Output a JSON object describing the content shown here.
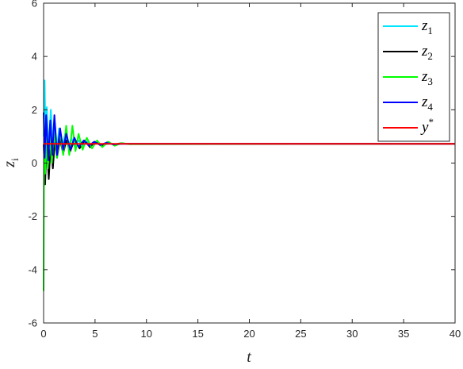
{
  "chart_data": {
    "type": "line",
    "title": "",
    "xlabel": "t",
    "ylabel_base": "z",
    "ylabel_sub": "i",
    "xlim": [
      0,
      40
    ],
    "ylim": [
      -6,
      6
    ],
    "x_ticks": [
      0,
      5,
      10,
      15,
      20,
      25,
      30,
      35,
      40
    ],
    "y_ticks": [
      -6,
      -4,
      -2,
      0,
      2,
      4,
      6
    ],
    "x_tick_labels": [
      "0",
      "5",
      "10",
      "15",
      "20",
      "25",
      "30",
      "35",
      "40"
    ],
    "y_tick_labels": [
      "-6",
      "-4",
      "-2",
      "0",
      "2",
      "4",
      "6"
    ],
    "grid": false,
    "legend_position": "top-right",
    "series": [
      {
        "name": "z1",
        "label_base": "z",
        "label_sub": "1",
        "color": "#00e5ff",
        "x": [
          0,
          0.1,
          0.2,
          0.3,
          0.5,
          0.7,
          0.9,
          1.1,
          1.3,
          1.5,
          1.8,
          2.1,
          2.4,
          2.7,
          3.0,
          3.4,
          3.8,
          4.2,
          4.7,
          5.2,
          5.8,
          6.5,
          7.2,
          8.0,
          40
        ],
        "y": [
          1.0,
          3.1,
          0.4,
          2.1,
          0.5,
          2.0,
          0.6,
          1.5,
          0.5,
          1.3,
          0.6,
          1.1,
          0.6,
          0.95,
          0.65,
          0.85,
          0.65,
          0.8,
          0.68,
          0.76,
          0.69,
          0.73,
          0.71,
          0.72,
          0.72
        ]
      },
      {
        "name": "z2",
        "label_base": "z",
        "label_sub": "2",
        "color": "#000000",
        "x": [
          0,
          0.15,
          0.3,
          0.5,
          0.7,
          0.9,
          1.1,
          1.3,
          1.6,
          1.9,
          2.2,
          2.6,
          3.0,
          3.5,
          4.0,
          4.5,
          5.0,
          5.6,
          6.2,
          6.8,
          7.5,
          8.2,
          40
        ],
        "y": [
          0.7,
          -0.8,
          0.9,
          -0.6,
          0.8,
          -0.2,
          0.9,
          0.2,
          0.9,
          0.35,
          0.85,
          0.45,
          0.88,
          0.55,
          0.85,
          0.6,
          0.8,
          0.65,
          0.78,
          0.7,
          0.74,
          0.72,
          0.72
        ]
      },
      {
        "name": "z3",
        "label_base": "z",
        "label_sub": "3",
        "color": "#00ff00",
        "x": [
          0,
          0.05,
          0.15,
          0.25,
          0.4,
          0.6,
          0.8,
          1.0,
          1.3,
          1.6,
          1.9,
          2.2,
          2.5,
          2.8,
          3.1,
          3.4,
          3.8,
          4.2,
          4.7,
          5.2,
          5.7,
          6.3,
          6.9,
          7.6,
          8.3,
          40
        ],
        "y": [
          -4.8,
          0.8,
          -0.4,
          0.9,
          -0.2,
          1.0,
          0.0,
          1.1,
          0.2,
          1.2,
          0.3,
          1.4,
          0.3,
          1.4,
          0.45,
          1.1,
          0.5,
          0.95,
          0.55,
          0.85,
          0.6,
          0.8,
          0.65,
          0.75,
          0.71,
          0.72
        ]
      },
      {
        "name": "z4",
        "label_base": "z",
        "label_sub": "4",
        "color": "#0000ff",
        "x": [
          0,
          0.1,
          0.25,
          0.45,
          0.65,
          0.85,
          1.05,
          1.3,
          1.6,
          1.9,
          2.2,
          2.6,
          3.0,
          3.4,
          3.9,
          4.4,
          4.9,
          5.5,
          6.1,
          6.8,
          7.5,
          40
        ],
        "y": [
          1.9,
          0.2,
          1.8,
          0.1,
          1.6,
          0.3,
          1.8,
          0.3,
          1.3,
          0.5,
          1.1,
          0.5,
          0.95,
          0.6,
          0.85,
          0.65,
          0.8,
          0.68,
          0.76,
          0.7,
          0.72,
          0.72
        ]
      },
      {
        "name": "y*",
        "label_base": "y",
        "label_sup": "*",
        "color": "#ff0000",
        "x": [
          0,
          40
        ],
        "y": [
          0.72,
          0.72
        ]
      }
    ]
  }
}
